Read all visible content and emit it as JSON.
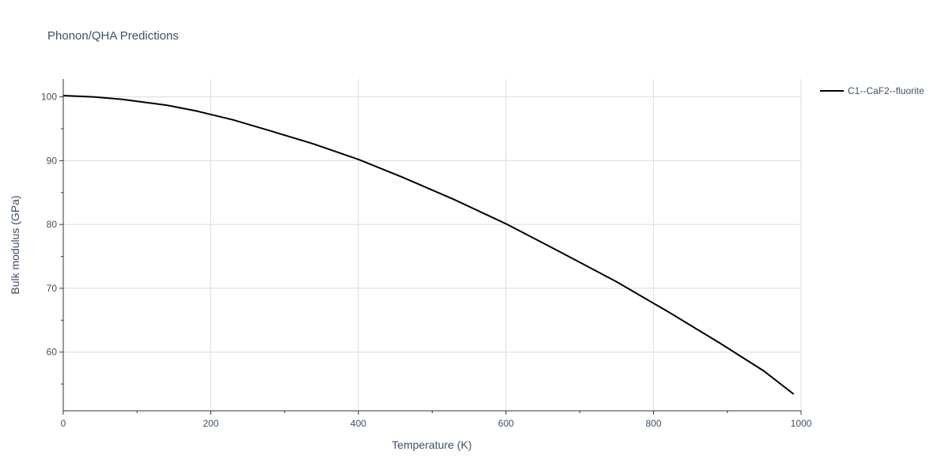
{
  "chart_data": {
    "type": "line",
    "title": "Phonon/QHA Predictions",
    "xlabel": "Temperature (K)",
    "ylabel": "Bulk modulus (GPa)",
    "xlim": [
      0,
      1000
    ],
    "ylim": [
      50.8,
      102.8
    ],
    "xticks": [
      0,
      200,
      400,
      600,
      800,
      1000
    ],
    "yticks": [
      60,
      70,
      80,
      90,
      100
    ],
    "grid": true,
    "legend_position": "top-right",
    "series": [
      {
        "name": "C1--CaF2--fluorite",
        "color": "#000000",
        "x": [
          0,
          40,
          80,
          140,
          180,
          230,
          280,
          340,
          400,
          460,
          530,
          600,
          670,
          750,
          820,
          890,
          950,
          990
        ],
        "y": [
          100.2,
          100.0,
          99.6,
          98.7,
          97.8,
          96.4,
          94.7,
          92.6,
          90.2,
          87.4,
          83.9,
          80.1,
          75.9,
          71.0,
          66.3,
          61.4,
          57.0,
          53.4
        ]
      }
    ]
  }
}
